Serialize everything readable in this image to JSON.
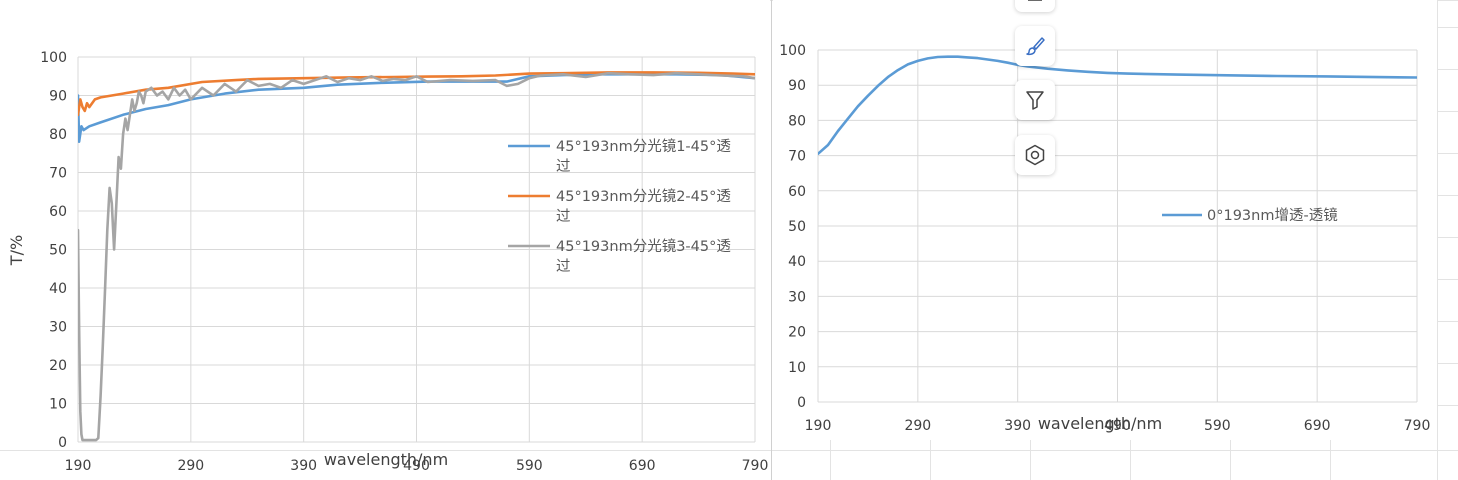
{
  "chart_data": [
    {
      "type": "line",
      "ylabel": "T/%",
      "xlabel": "wavelength/nm",
      "xlim": [
        190,
        790
      ],
      "ylim": [
        0,
        100
      ],
      "xticks": [
        "190",
        "290",
        "390",
        "490",
        "590",
        "690",
        "790"
      ],
      "yticks": [
        "0",
        "10",
        "20",
        "30",
        "40",
        "50",
        "60",
        "70",
        "80",
        "90",
        "100"
      ],
      "grid": true,
      "legend_position": "right",
      "series": [
        {
          "name": "45°193nm分光镜1-45°透过",
          "color": "#5b9bd5",
          "x": [
            190,
            191,
            193,
            195,
            200,
            210,
            230,
            250,
            270,
            290,
            320,
            350,
            390,
            420,
            460,
            500,
            540,
            570,
            590,
            620,
            650,
            690,
            720,
            760,
            790
          ],
          "y": [
            90,
            78,
            82,
            81,
            82,
            83,
            85,
            86.5,
            87.5,
            89,
            90.5,
            91.5,
            92,
            92.8,
            93.3,
            93.6,
            93.6,
            93.6,
            95,
            95.3,
            95.5,
            95.5,
            95.5,
            95.3,
            94.5
          ]
        },
        {
          "name": "45°193nm分光镜2-45°透过",
          "color": "#ed7d31",
          "x": [
            190,
            192,
            194,
            196,
            198,
            200,
            205,
            210,
            220,
            230,
            240,
            250,
            270,
            300,
            330,
            350,
            390,
            430,
            470,
            500,
            530,
            560,
            590,
            620,
            660,
            700,
            740,
            770,
            790
          ],
          "y": [
            85,
            89,
            87,
            86,
            88,
            87,
            89,
            89.5,
            90,
            90.5,
            91,
            91.5,
            92,
            93.5,
            94,
            94.3,
            94.5,
            94.7,
            94.8,
            94.9,
            95,
            95.2,
            95.7,
            95.8,
            96,
            96,
            95.9,
            95.7,
            95.5
          ]
        },
        {
          "name": "45°193nm分光镜3-45°透过",
          "color": "#a5a5a5",
          "x": [
            190,
            191,
            192,
            193,
            194,
            195,
            196,
            198,
            200,
            202,
            204,
            206,
            208,
            210,
            212,
            214,
            216,
            218,
            220,
            222,
            224,
            226,
            228,
            230,
            232,
            234,
            236,
            238,
            240,
            242,
            244,
            246,
            248,
            250,
            255,
            260,
            265,
            270,
            275,
            280,
            285,
            290,
            300,
            310,
            320,
            330,
            340,
            350,
            360,
            370,
            380,
            390,
            400,
            410,
            420,
            430,
            440,
            450,
            460,
            470,
            480,
            490,
            500,
            520,
            540,
            560,
            570,
            580,
            590,
            600,
            620,
            640,
            660,
            680,
            700,
            720,
            740,
            760,
            780,
            790
          ],
          "y": [
            55,
            30,
            8,
            2,
            0.5,
            0.5,
            0.5,
            0.5,
            0.5,
            0.5,
            0.5,
            0.5,
            1,
            12,
            25,
            40,
            55,
            66,
            62,
            50,
            62,
            74,
            71,
            80,
            84,
            81,
            85,
            89,
            86,
            88,
            91,
            90,
            88,
            91,
            92,
            90,
            91,
            89,
            92,
            90,
            91.5,
            89,
            92,
            90,
            93,
            91,
            94,
            92.5,
            93,
            92,
            94,
            93,
            94,
            95,
            93.5,
            94.5,
            94,
            95,
            93.8,
            94.3,
            94,
            95,
            93.5,
            94,
            93.8,
            94,
            92.5,
            93,
            94.5,
            95.2,
            95.5,
            94.8,
            95.8,
            95.5,
            95.3,
            95.8,
            95.5,
            95.2,
            95,
            94.5
          ]
        }
      ]
    },
    {
      "type": "line",
      "xlabel": "wavelength/nm",
      "xlim": [
        190,
        790
      ],
      "ylim": [
        0,
        100
      ],
      "xticks": [
        "190",
        "290",
        "390",
        "490",
        "590",
        "690",
        "790"
      ],
      "yticks": [
        "0",
        "10",
        "20",
        "30",
        "40",
        "50",
        "60",
        "70",
        "80",
        "90",
        "100"
      ],
      "grid": true,
      "legend_position": "right",
      "series": [
        {
          "name": "0°193nm增透-透镜",
          "color": "#5b9bd5",
          "x": [
            190,
            200,
            210,
            220,
            230,
            240,
            250,
            260,
            270,
            280,
            290,
            300,
            310,
            320,
            330,
            340,
            350,
            360,
            370,
            380,
            390,
            400,
            420,
            440,
            460,
            480,
            500,
            550,
            600,
            650,
            700,
            750,
            790
          ],
          "y": [
            70.5,
            73,
            77,
            80.5,
            84,
            87,
            89.8,
            92.3,
            94.3,
            95.9,
            96.9,
            97.6,
            98,
            98.1,
            98.1,
            97.9,
            97.7,
            97.3,
            96.9,
            96.4,
            95.8,
            95.3,
            94.7,
            94.2,
            93.8,
            93.5,
            93.3,
            93,
            92.8,
            92.6,
            92.5,
            92.3,
            92.2
          ]
        }
      ]
    }
  ],
  "toolbar": {
    "icons": [
      "chart-elements-icon",
      "brush-icon",
      "filter-icon",
      "settings-hexagon-icon"
    ]
  }
}
